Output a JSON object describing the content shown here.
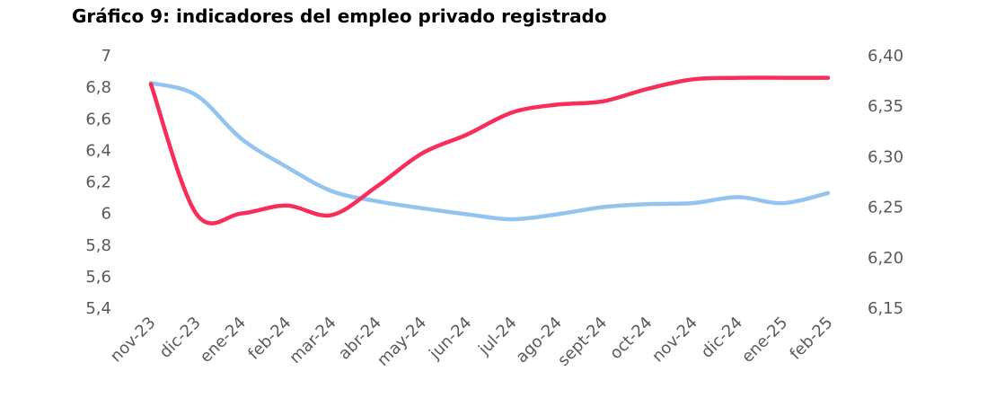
{
  "chart_data": {
    "type": "line",
    "title": "Gráfico 9: indicadores del empleo privado registrado",
    "categories": [
      "nov-23",
      "dic-23",
      "ene-24",
      "feb-24",
      "mar-24",
      "abr-24",
      "may-24",
      "jun-24",
      "jul-24",
      "ago-24",
      "sept-24",
      "oct-24",
      "nov-24",
      "dic-24",
      "ene-25",
      "feb-25"
    ],
    "y_left": {
      "ylim": [
        5.4,
        7
      ],
      "ticks": [
        "7",
        "6,8",
        "6,6",
        "6,4",
        "6,2",
        "6",
        "5,8",
        "5,6",
        "5,4"
      ],
      "tick_values": [
        7,
        6.8,
        6.6,
        6.4,
        6.2,
        6,
        5.8,
        5.6,
        5.4
      ]
    },
    "y_right": {
      "ylim": [
        6.15,
        6.4
      ],
      "ticks": [
        "6,40",
        "6,35",
        "6,30",
        "6,25",
        "6,20",
        "6,15"
      ],
      "tick_values": [
        6.4,
        6.35,
        6.3,
        6.25,
        6.2,
        6.15
      ]
    },
    "series": [
      {
        "axis": "left",
        "color": "#f72d5a",
        "values": [
          6.82,
          6.0,
          6.0,
          6.05,
          5.99,
          6.17,
          6.38,
          6.5,
          6.64,
          6.69,
          6.71,
          6.79,
          6.85,
          6.86,
          6.86,
          6.86
        ]
      },
      {
        "axis": "right",
        "color": "#93c3ef",
        "values": [
          6.373,
          6.361,
          6.318,
          6.29,
          6.266,
          6.256,
          6.249,
          6.243,
          6.238,
          6.243,
          6.25,
          6.253,
          6.254,
          6.26,
          6.254,
          6.264
        ]
      }
    ],
    "grid": false,
    "legend": "none"
  }
}
